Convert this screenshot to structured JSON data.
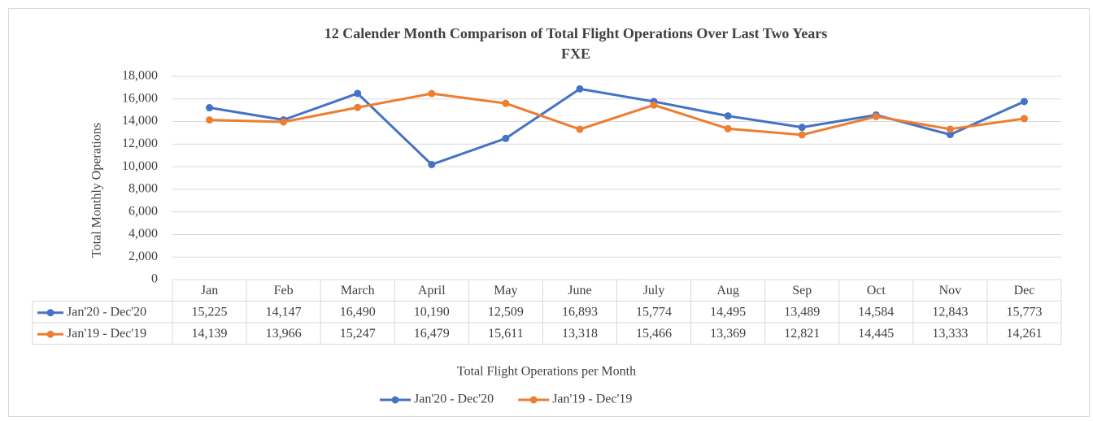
{
  "chart_data": {
    "type": "line",
    "title": "12 Calender Month Comparison of Total Flight Operations Over Last Two Years",
    "subtitle": "FXE",
    "y_label": "Total Monthly Operations",
    "x_label": "Total Flight Operations per Month",
    "categories": [
      "Jan",
      "Feb",
      "March",
      "April",
      "May",
      "June",
      "July",
      "Aug",
      "Sep",
      "Oct",
      "Nov",
      "Dec"
    ],
    "series": [
      {
        "name": "Jan'20 - Dec'20",
        "color": "#4472c4",
        "values": [
          15225,
          14147,
          16490,
          10190,
          12509,
          16893,
          15774,
          14495,
          13489,
          14584,
          12843,
          15773
        ],
        "value_labels": [
          "15,225",
          "14,147",
          "16,490",
          "10,190",
          "12,509",
          "16,893",
          "15,774",
          "14,495",
          "13,489",
          "14,584",
          "12,843",
          "15,773"
        ]
      },
      {
        "name": "Jan'19 - Dec'19",
        "color": "#ed7d31",
        "values": [
          14139,
          13966,
          15247,
          16479,
          15611,
          13318,
          15466,
          13369,
          12821,
          14445,
          13333,
          14261
        ],
        "value_labels": [
          "14,139",
          "13,966",
          "15,247",
          "16,479",
          "15,611",
          "13,318",
          "15,466",
          "13,369",
          "12,821",
          "14,445",
          "13,333",
          "14,261"
        ]
      }
    ],
    "ylim": [
      0,
      18000
    ],
    "yticks": [
      0,
      {
        "value": 2000,
        "label": "2,000"
      },
      {
        "value": 4000,
        "label": "4,000"
      },
      {
        "value": 6000,
        "label": "6,000"
      },
      {
        "value": 8000,
        "label": "8,000"
      },
      {
        "value": 10000,
        "label": "10,000"
      },
      {
        "value": 12000,
        "label": "12,000"
      },
      {
        "value": 14000,
        "label": "14,000"
      },
      {
        "value": 16000,
        "label": "16,000"
      },
      {
        "value": 18000,
        "label": "18,000"
      }
    ],
    "grid": true,
    "legend": "bottom"
  }
}
